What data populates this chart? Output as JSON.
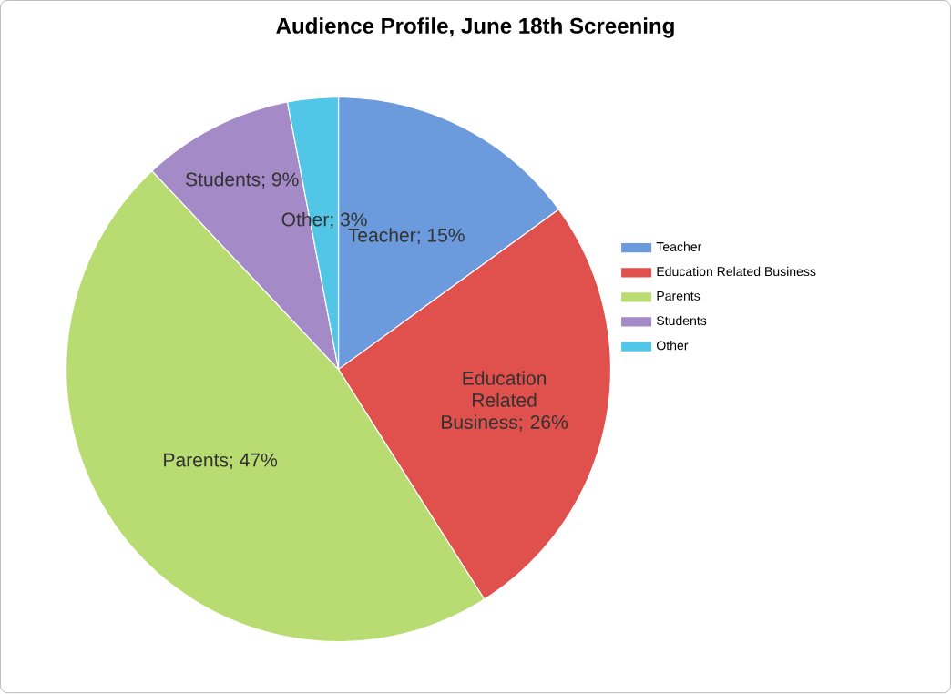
{
  "chart_data": {
    "type": "pie",
    "title": "Audience Profile, June 18th Screening",
    "categories": [
      "Teacher",
      "Education Related Business",
      "Parents",
      "Students",
      "Other"
    ],
    "values": [
      15,
      26,
      47,
      9,
      3
    ],
    "colors": [
      "#6b9bdc",
      "#e0504c",
      "#b8dc72",
      "#a48ac6",
      "#52c6e6"
    ],
    "value_labels": [
      "Teacher; 15%",
      "Education Related Business; 26%",
      "Parents; 47%",
      "Students; 9%",
      "Other; 3%"
    ],
    "legend": "right"
  }
}
